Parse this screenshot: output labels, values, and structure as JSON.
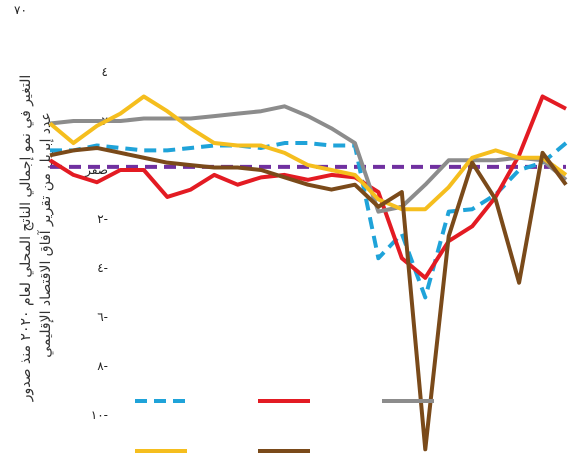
{
  "chart_data": {
    "type": "line",
    "title": "",
    "corner_label": "٧٠",
    "ylabel_lines": [
      "التغير في نمو إجمالي الناتج المحلي لعام ٢٠٢٠ منذ صدور",
      "عدد إبريل من تقرير آفاق الاقتصاد الإقليمي"
    ],
    "yticks": [
      {
        "value": 4,
        "label": "٤"
      },
      {
        "value": 2,
        "label": "٢"
      },
      {
        "value": 0,
        "label": "صفر"
      },
      {
        "value": -2,
        "label": "٢-"
      },
      {
        "value": -4,
        "label": "٤-"
      },
      {
        "value": -6,
        "label": "٦-"
      },
      {
        "value": -8,
        "label": "٨-"
      },
      {
        "value": -10,
        "label": "١٠-"
      }
    ],
    "ylim": [
      -12,
      5
    ],
    "x": [
      0,
      1,
      2,
      3,
      4,
      5,
      6,
      7,
      8,
      9,
      10,
      11,
      12,
      13,
      14,
      15,
      16,
      17,
      18,
      19,
      20,
      21,
      22
    ],
    "reference_line": {
      "value": 0.13,
      "color": "#7030A0"
    },
    "series": [
      {
        "color": "#1FA3D9",
        "dash": true,
        "values": [
          0.8,
          0.8,
          1.0,
          0.9,
          0.8,
          0.8,
          0.9,
          1.0,
          1.0,
          0.9,
          1.1,
          1.1,
          1.0,
          1.0,
          -3.6,
          -2.6,
          -5.2,
          -1.7,
          -1.6,
          -1.0,
          0.0,
          0.3,
          1.1
        ]
      },
      {
        "color": "#E31B23",
        "dash": false,
        "values": [
          0.4,
          -0.2,
          -0.5,
          0.0,
          0.0,
          -1.1,
          -0.8,
          -0.2,
          -0.6,
          -0.3,
          -0.2,
          -0.4,
          -0.2,
          -0.3,
          -0.9,
          -3.6,
          -4.4,
          -2.9,
          -2.3,
          -1.1,
          0.6,
          3.0,
          2.5
        ]
      },
      {
        "color": "#8C8C8C",
        "dash": false,
        "values": [
          1.9,
          2.0,
          2.0,
          2.0,
          2.1,
          2.1,
          2.1,
          2.2,
          2.3,
          2.4,
          2.6,
          2.2,
          1.7,
          1.1,
          -1.7,
          -1.5,
          -0.6,
          0.4,
          0.4,
          0.4,
          0.5,
          0.4,
          -0.4
        ]
      },
      {
        "color": "#F5BE1E",
        "dash": false,
        "values": [
          1.9,
          1.1,
          1.8,
          2.3,
          3.0,
          2.4,
          1.7,
          1.1,
          1.0,
          1.0,
          0.7,
          0.2,
          0.0,
          -0.2,
          -1.2,
          -1.6,
          -1.6,
          -0.7,
          0.5,
          0.8,
          0.5,
          0.5,
          -0.2
        ]
      },
      {
        "color": "#7A4A1A",
        "dash": false,
        "values": [
          0.6,
          0.8,
          0.9,
          0.7,
          0.5,
          0.3,
          0.2,
          0.1,
          0.1,
          0.0,
          -0.3,
          -0.6,
          -0.8,
          -0.6,
          -1.5,
          -0.9,
          -11.4,
          -2.7,
          0.3,
          -1.2,
          -4.6,
          0.7,
          -0.6
        ]
      }
    ],
    "legend": {
      "placement": "bottom",
      "entries": [
        {
          "color": "#1FA3D9",
          "dash": true
        },
        {
          "color": "#E31B23"
        },
        {
          "color": "#8C8C8C"
        },
        {
          "color": "#F5BE1E"
        },
        {
          "color": "#7A4A1A"
        }
      ]
    },
    "grid": false
  }
}
